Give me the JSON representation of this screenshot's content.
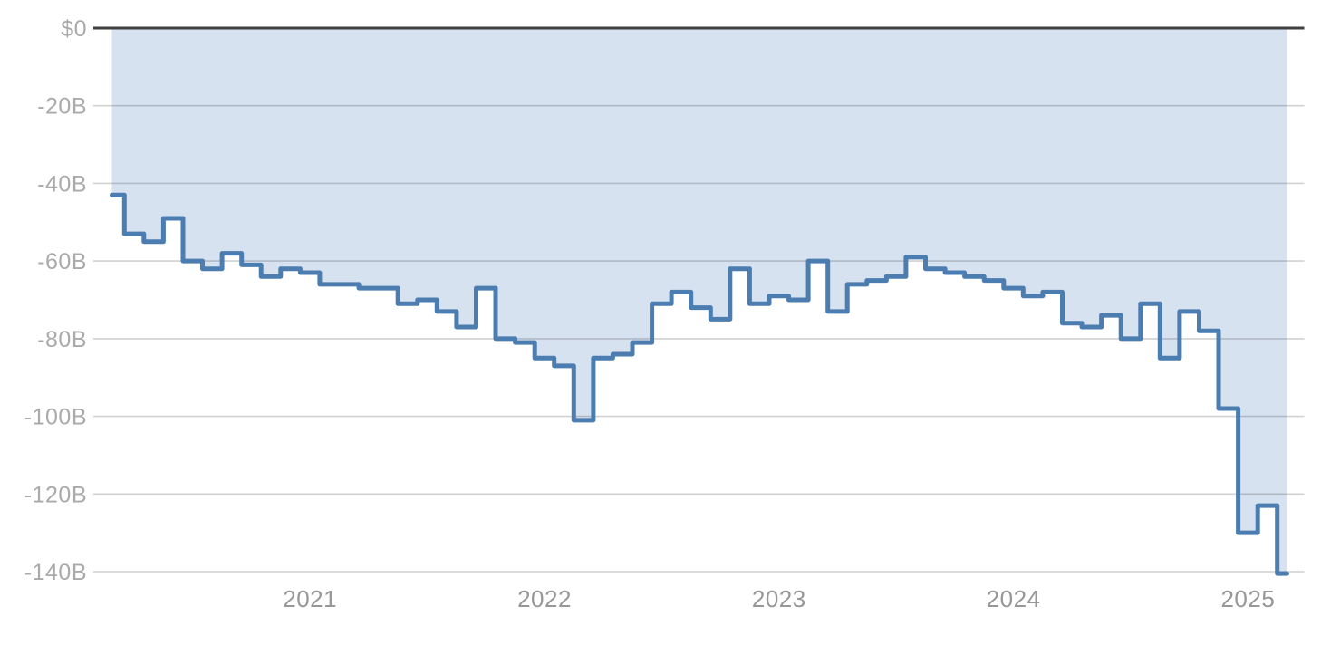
{
  "chart_data": {
    "type": "area",
    "subtype": "step",
    "title": "",
    "unit": "USD billions",
    "frequency": "monthly",
    "start_month": "2020-03",
    "end_month": "2025-03",
    "values": [
      -43,
      -53,
      -55,
      -49,
      -60,
      -62,
      -58,
      -61,
      -64,
      -62,
      -63,
      -66,
      -66,
      -67,
      -67,
      -71,
      -70,
      -73,
      -77,
      -67,
      -80,
      -81,
      -85,
      -87,
      -101,
      -85,
      -84,
      -81,
      -71,
      -68,
      -72,
      -75,
      -62,
      -71,
      -69,
      -70,
      -60,
      -73,
      -66,
      -65,
      -64,
      -59,
      -62,
      -63,
      -64,
      -65,
      -67,
      -69,
      -68,
      -76,
      -77,
      -74,
      -80,
      -71,
      -85,
      -73,
      -78,
      -98,
      -130,
      -123,
      -140.5
    ],
    "y_axis": {
      "tick_values": [
        0,
        -20,
        -40,
        -60,
        -80,
        -100,
        -120,
        -140
      ],
      "tick_labels": [
        "$0",
        "-20B",
        "-40B",
        "-60B",
        "-80B",
        "-100B",
        "-120B",
        "-140B"
      ],
      "range": [
        -145,
        0
      ]
    },
    "x_axis": {
      "tick_labels": [
        "2021",
        "2022",
        "2023",
        "2024",
        "2025"
      ]
    },
    "grid": true,
    "legend": false,
    "colors": {
      "line": "#4b7db1",
      "fill": "#d7e2f0",
      "zero_line": "#3f3f3f",
      "grid_line": "#cccccc",
      "y_label_text": "#aaaaaa",
      "x_label_text": "#979797",
      "background": "#ffffff"
    }
  }
}
